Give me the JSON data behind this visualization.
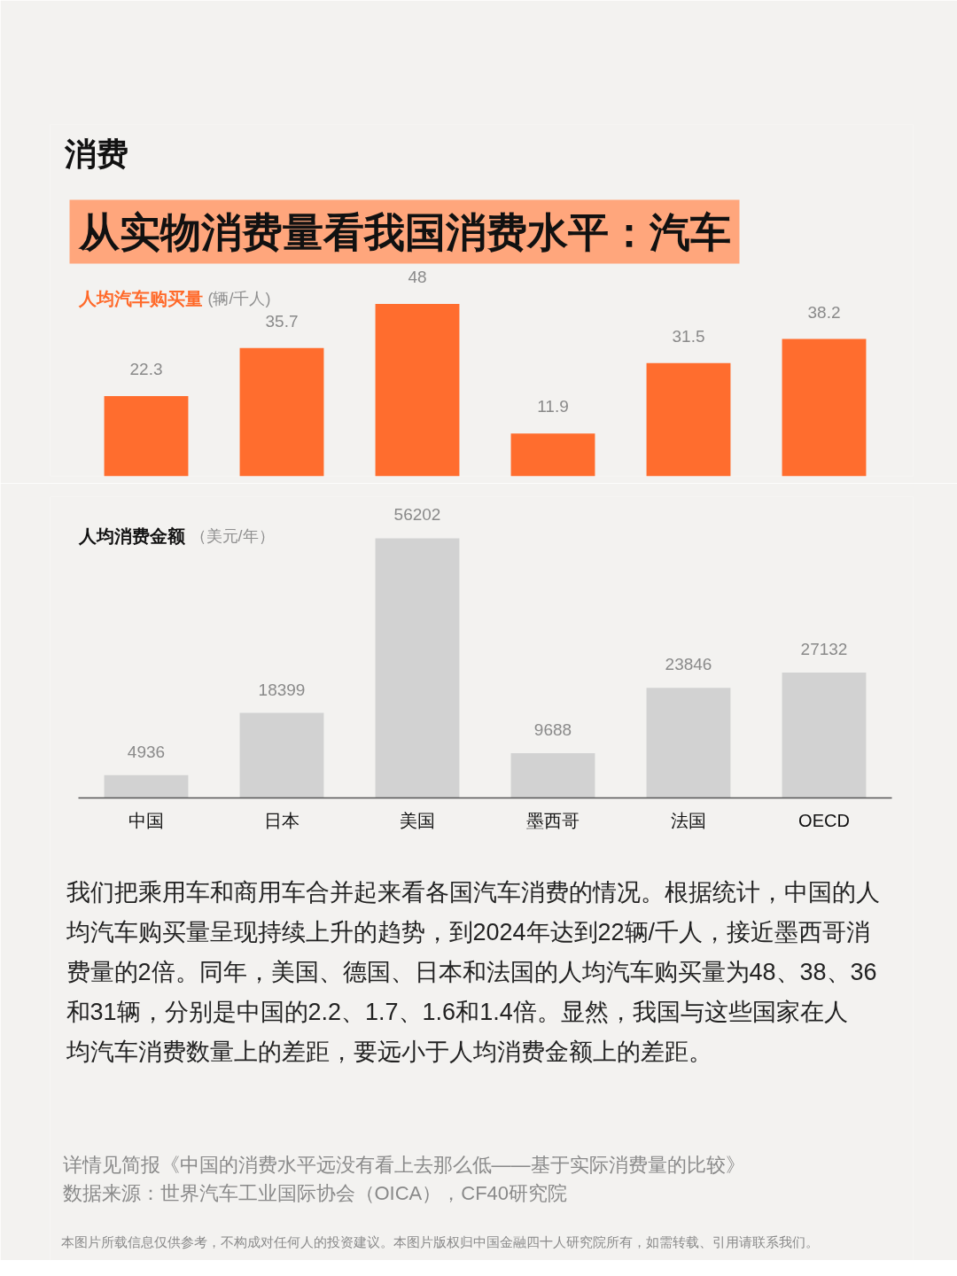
{
  "chart_data": [
    {
      "type": "bar",
      "title": "人均汽车购买量",
      "subtitle": "(辆/千人)",
      "categories": [
        null,
        null,
        null,
        null,
        null,
        null
      ],
      "values": [
        22.3,
        35.7,
        48,
        11.9,
        31.5,
        38.2
      ],
      "color": "#ff6d2e",
      "data_labels": true,
      "tick_labels": false,
      "annotations": [
        "消费",
        "从实物消费量看我国消费水平：汽车"
      ]
    },
    {
      "type": "bar",
      "title": "人均消费金额",
      "subtitle": "（美元/年）",
      "categories": [
        "中国",
        "日本",
        "美国",
        "墨西哥",
        "法国",
        "OECD"
      ],
      "values": [
        4936,
        18399,
        56202,
        9688,
        23846,
        27132
      ],
      "color": "#d2d2d2",
      "data_labels": true,
      "tick_labels": "x",
      "annotations": [
        "我们把乘用车和商用车合并起来看各国汽车消费的情况。根据统计，中国的人均汽车购买量呈现持续上升的趋势，到2024年达到22辆/千人，接近墨西哥消费量的2倍。同年，美国、德国、日本和法国的人均汽车购买量为48、38、36和31辆，分别是中国的2.2、1.7、1.6和1.4倍。显然，我国与这些国家在人均汽车消费数量上的差距，要远小于人均消费金额上的差距。",
        "详情见简报《中国的消费水平远没有看上去那么低——基于实际消费量的比较》",
        "数据来源：世界汽车工业国际协会（OICA），CF40研究院",
        "本图片所载信息仅供参考，不构成对任何人的投资建议。本图片版权归中国金融四十人研究院所有，如需转载、引用请联系我们。"
      ]
    }
  ]
}
